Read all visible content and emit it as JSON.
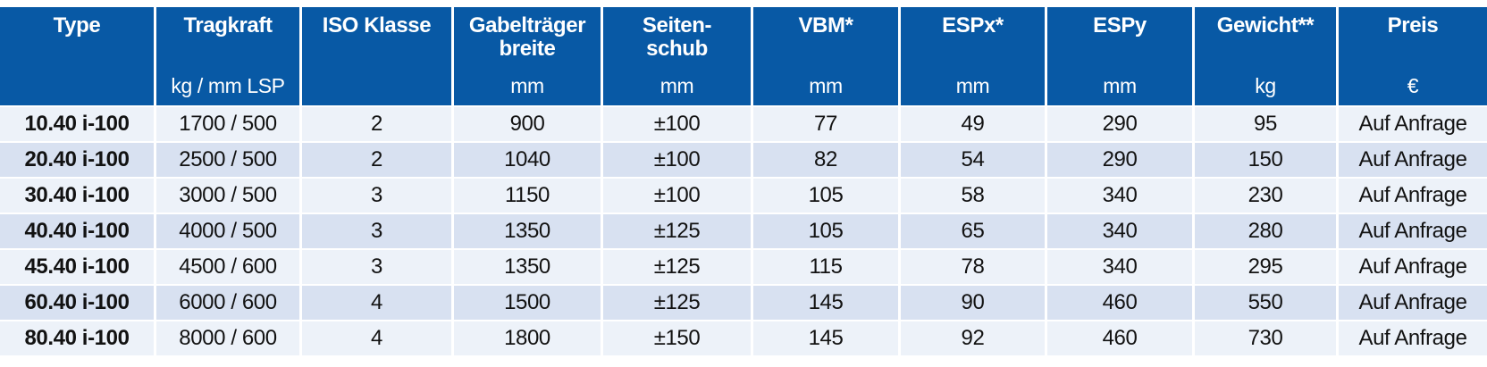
{
  "table": {
    "columns": [
      {
        "key": "type",
        "label": "Type",
        "unit": ""
      },
      {
        "key": "tragkraft",
        "label": "Tragkraft",
        "unit": "kg / mm LSP"
      },
      {
        "key": "iso-klasse",
        "label": "ISO Klasse",
        "unit": ""
      },
      {
        "key": "gabeltraegerbreite",
        "label": "Gabelträger\nbreite",
        "unit": "mm"
      },
      {
        "key": "seitenschub",
        "label": "Seiten-\nschub",
        "unit": "mm"
      },
      {
        "key": "vbm",
        "label": "VBM*",
        "unit": "mm"
      },
      {
        "key": "espx",
        "label": "ESPx*",
        "unit": "mm"
      },
      {
        "key": "espy",
        "label": "ESPy",
        "unit": "mm"
      },
      {
        "key": "gewicht",
        "label": "Gewicht**",
        "unit": "kg"
      },
      {
        "key": "preis",
        "label": "Preis",
        "unit": "€"
      }
    ],
    "rows": [
      [
        "10.40 i-100",
        "1700 / 500",
        "2",
        "900",
        "±100",
        "77",
        "49",
        "290",
        "95",
        "Auf Anfrage"
      ],
      [
        "20.40 i-100",
        "2500 / 500",
        "2",
        "1040",
        "±100",
        "82",
        "54",
        "290",
        "150",
        "Auf Anfrage"
      ],
      [
        "30.40 i-100",
        "3000 / 500",
        "3",
        "1150",
        "±100",
        "105",
        "58",
        "340",
        "230",
        "Auf Anfrage"
      ],
      [
        "40.40 i-100",
        "4000 / 500",
        "3",
        "1350",
        "±125",
        "105",
        "65",
        "340",
        "280",
        "Auf Anfrage"
      ],
      [
        "45.40 i-100",
        "4500 / 600",
        "3",
        "1350",
        "±125",
        "115",
        "78",
        "340",
        "295",
        "Auf Anfrage"
      ],
      [
        "60.40 i-100",
        "6000 / 600",
        "4",
        "1500",
        "±125",
        "145",
        "90",
        "460",
        "550",
        "Auf Anfrage"
      ],
      [
        "80.40 i-100",
        "8000 / 600",
        "4",
        "1800",
        "±150",
        "145",
        "92",
        "460",
        "730",
        "Auf Anfrage"
      ]
    ]
  },
  "colors": {
    "header_bg": "#0859a5",
    "header_text": "#ffffff",
    "row_odd_bg": "#edf2f9",
    "row_even_bg": "#d8e1f1",
    "body_text": "#121212"
  }
}
